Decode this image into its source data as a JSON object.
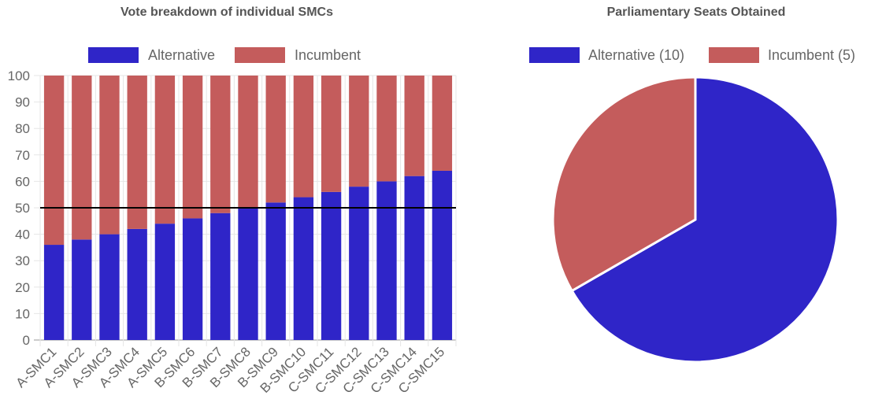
{
  "chart_data": [
    {
      "type": "bar",
      "stacked": true,
      "title": "Vote breakdown of individual SMCs",
      "categories": [
        "A-SMC1",
        "A-SMC2",
        "A-SMC3",
        "A-SMC4",
        "A-SMC5",
        "B-SMC6",
        "B-SMC7",
        "B-SMC8",
        "B-SMC9",
        "B-SMC10",
        "C-SMC11",
        "C-SMC12",
        "C-SMC13",
        "C-SMC14",
        "C-SMC15"
      ],
      "series": [
        {
          "name": "Alternative",
          "color": "#2f25c8",
          "values": [
            36,
            38,
            40,
            42,
            44,
            46,
            48,
            50,
            52,
            54,
            56,
            58,
            60,
            62,
            64
          ]
        },
        {
          "name": "Incumbent",
          "color": "#c45c5c",
          "values": [
            64,
            62,
            60,
            58,
            56,
            54,
            52,
            50,
            48,
            46,
            44,
            42,
            40,
            38,
            36
          ]
        }
      ],
      "ylim": [
        0,
        100
      ],
      "yticks": [
        "0",
        "10",
        "20",
        "30",
        "40",
        "50",
        "60",
        "70",
        "80",
        "90",
        "100"
      ],
      "reference_line": 50,
      "grid": true,
      "legend": "top"
    },
    {
      "type": "pie",
      "title": "Parliamentary Seats Obtained",
      "labels": [
        "Alternative (10)",
        "Incumbent (5)"
      ],
      "values": [
        10,
        5
      ],
      "colors": [
        "#2f25c8",
        "#c45c5c"
      ],
      "legend": "top"
    }
  ]
}
